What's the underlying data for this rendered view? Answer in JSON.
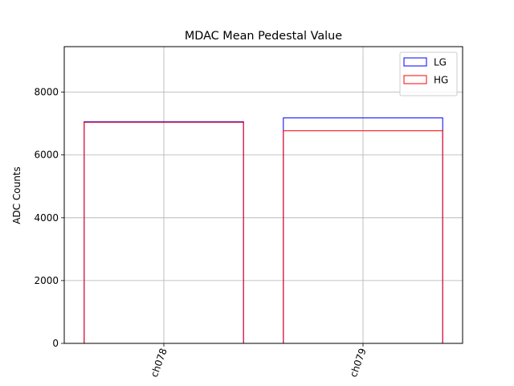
{
  "chart_data": {
    "type": "bar",
    "title": "MDAC Mean Pedestal Value",
    "xlabel": "",
    "ylabel": "ADC Counts",
    "categories": [
      "ch078",
      "ch079"
    ],
    "series": [
      {
        "name": "LG",
        "color": "#0000ff",
        "values": [
          7060,
          7180
        ]
      },
      {
        "name": "HG",
        "color": "#ff0000",
        "values": [
          7040,
          6770
        ]
      }
    ],
    "ylim": [
      0,
      9450
    ],
    "yticks": [
      "0",
      "2000",
      "4000",
      "6000",
      "8000"
    ],
    "grid": true,
    "legend": "top-right",
    "bar_style": "outline",
    "xtick_rotation": -70
  }
}
